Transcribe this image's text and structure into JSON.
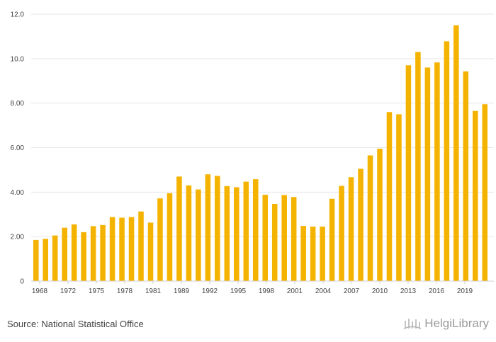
{
  "source": "Source: National Statistical Office",
  "logo": {
    "text": "HelgiLibrary",
    "icon": "helgi-library-logo-icon"
  },
  "colors": {
    "bar": "#f5b301",
    "grid": "#e6e6e6",
    "axis": "#cfcfcf",
    "text": "#444444"
  },
  "chart_data": {
    "type": "bar",
    "title": "",
    "xlabel": "",
    "ylabel": "",
    "ylim": [
      0,
      12
    ],
    "y_ticks": [
      "0",
      "2.00",
      "4.00",
      "6.00",
      "8.00",
      "10.0",
      "12.0"
    ],
    "x_ticks": [
      "1968",
      "1972",
      "1975",
      "1978",
      "1981",
      "1989",
      "1992",
      "1995",
      "1998",
      "2001",
      "2004",
      "2007",
      "2010",
      "2013",
      "2016",
      "2019"
    ],
    "grid": true,
    "legend": "none",
    "series": [
      {
        "values": [
          1.85,
          1.9,
          2.05,
          2.4,
          2.55,
          2.2,
          2.47,
          2.52,
          2.88,
          2.85,
          2.88,
          3.13,
          2.63,
          3.72,
          3.95,
          4.7,
          4.3,
          4.12,
          4.8,
          4.73,
          4.27,
          4.22,
          4.47,
          4.58,
          3.88,
          3.47,
          3.87,
          3.78,
          2.48,
          2.45,
          2.45,
          3.7,
          4.28,
          4.67,
          5.05,
          5.65,
          5.95,
          7.6,
          7.5,
          9.7,
          10.3,
          9.6,
          9.83,
          10.78,
          11.5,
          9.43,
          7.65,
          7.95
        ]
      }
    ]
  }
}
